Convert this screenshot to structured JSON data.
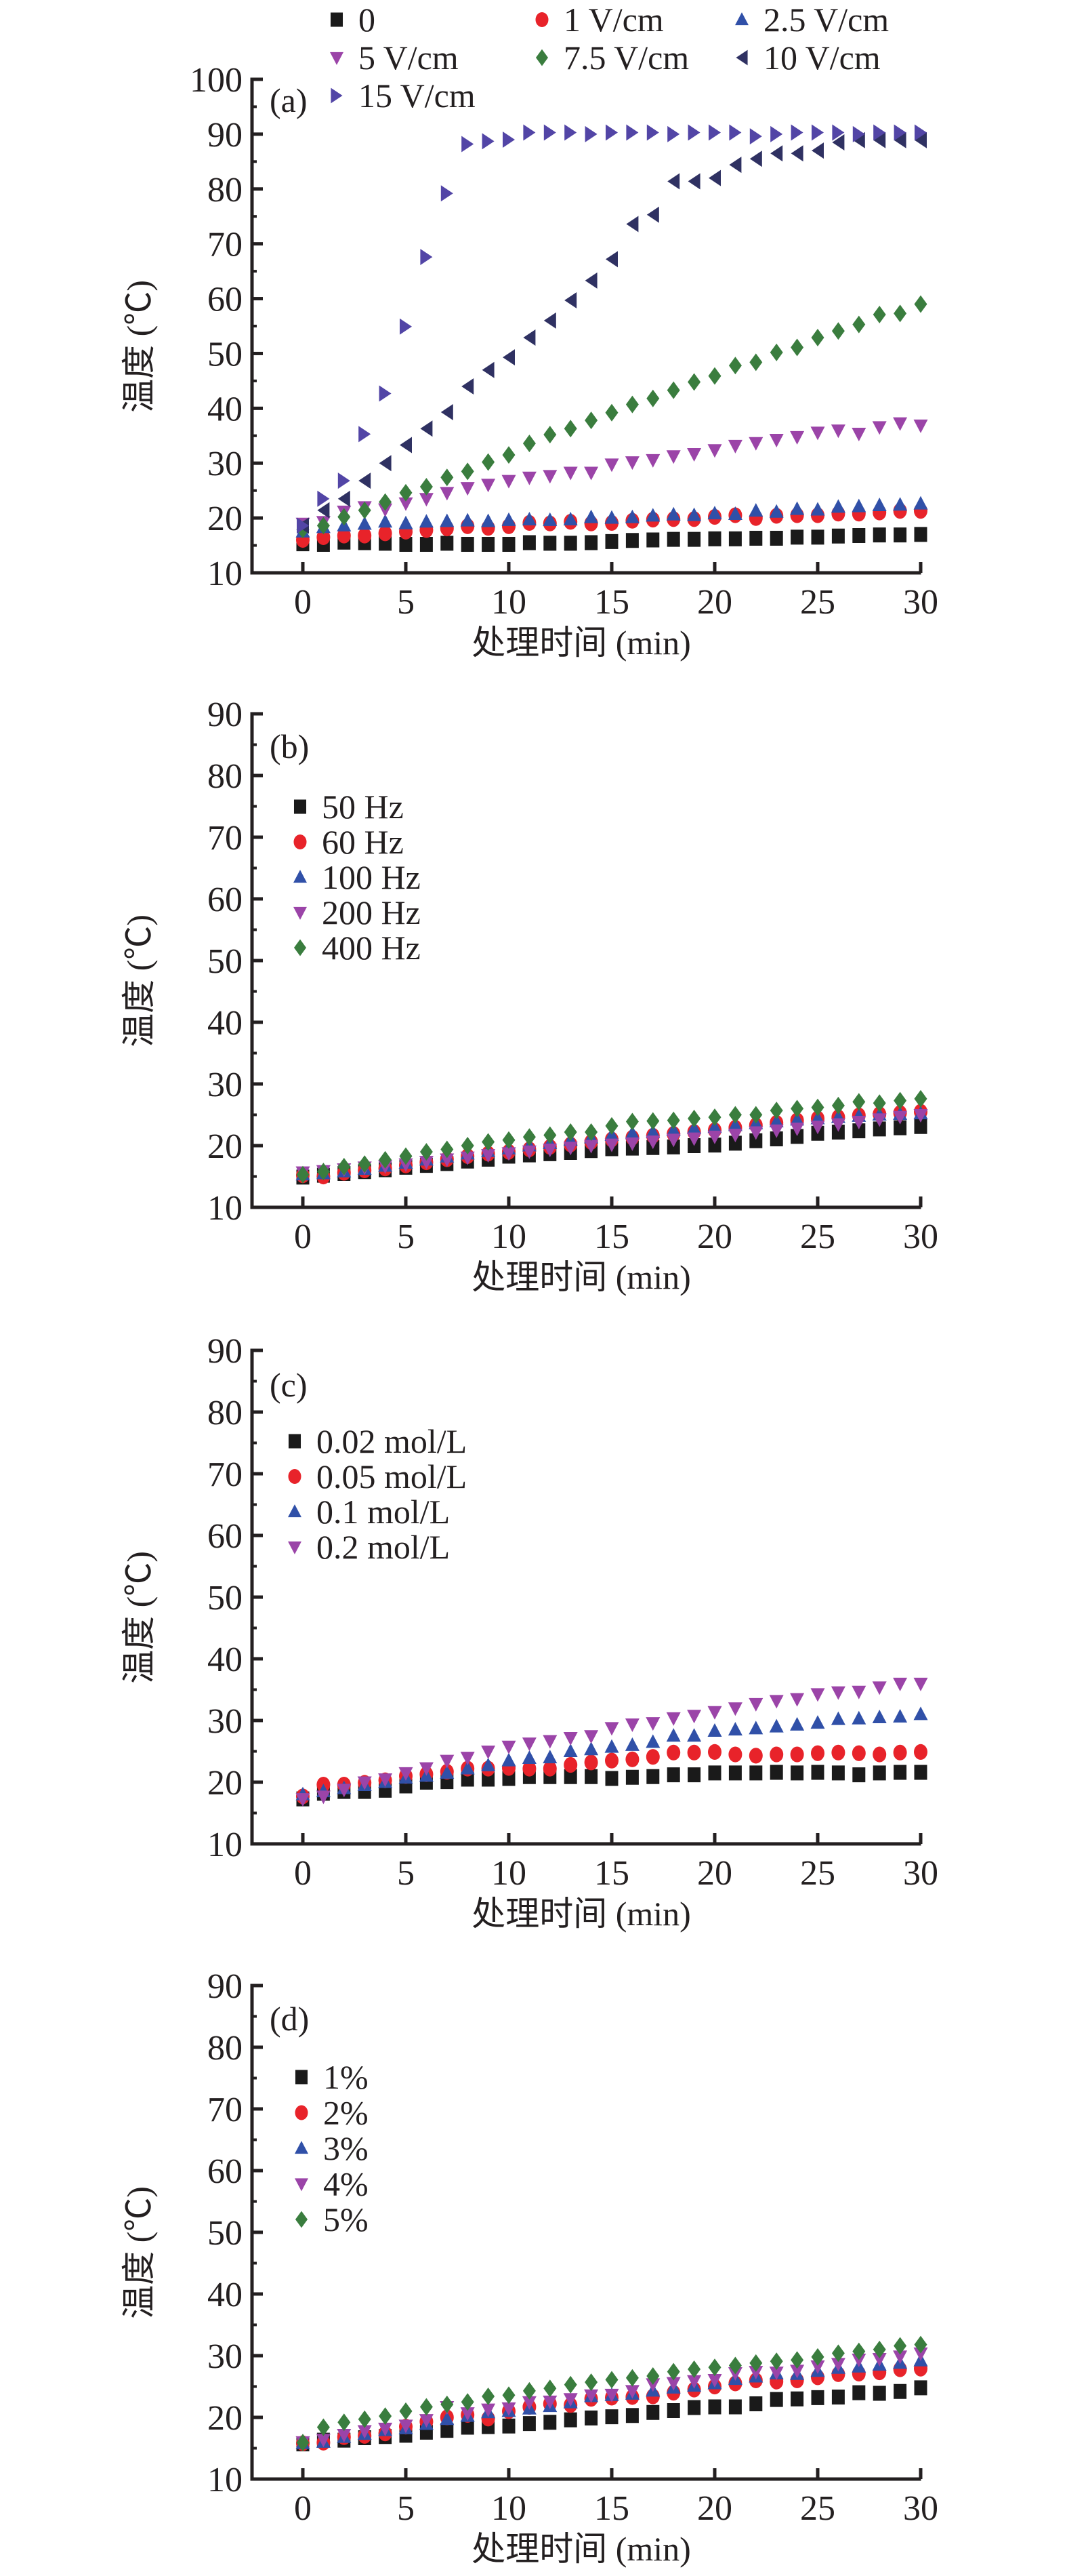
{
  "chart_data": [
    {
      "panel": "(a)",
      "type": "scatter",
      "title": "",
      "xlabel": "处理时间 (min)",
      "ylabel": "温度 (℃)",
      "xlim": [
        -2.5,
        30
      ],
      "ylim": [
        10,
        100
      ],
      "xticks": [
        0,
        5,
        10,
        15,
        20,
        25,
        30
      ],
      "yticks": [
        10,
        20,
        30,
        40,
        50,
        60,
        70,
        80,
        90,
        100
      ],
      "grid": false,
      "legend_placement": "top",
      "x": [
        0,
        1,
        2,
        3,
        4,
        5,
        6,
        7,
        8,
        9,
        10,
        11,
        12,
        13,
        14,
        15,
        16,
        17,
        18,
        19,
        20,
        21,
        22,
        23,
        24,
        25,
        26,
        27,
        28,
        29,
        30
      ],
      "series": [
        {
          "name": "0",
          "marker": "square",
          "color": "#1a1a1a",
          "values": [
            15.3,
            15.2,
            15.6,
            15.5,
            15.4,
            15.2,
            15.2,
            15.4,
            15.2,
            15.2,
            15.2,
            15.5,
            15.4,
            15.4,
            15.5,
            15.7,
            15.9,
            16.0,
            16.1,
            16.1,
            16.2,
            16.2,
            16.3,
            16.3,
            16.5,
            16.5,
            16.7,
            16.8,
            16.9,
            16.9,
            17.0
          ]
        },
        {
          "name": "1 V/cm",
          "marker": "circle",
          "color": "#e8232a",
          "values": [
            16.0,
            16.5,
            16.8,
            16.8,
            17.2,
            17.5,
            17.8,
            18.1,
            18.5,
            18.2,
            18.5,
            19.1,
            19.0,
            19.3,
            19.0,
            19.1,
            19.5,
            19.7,
            19.8,
            19.8,
            20.2,
            20.5,
            20.0,
            20.4,
            20.5,
            20.5,
            20.8,
            20.8,
            21.0,
            21.3,
            21.3
          ]
        },
        {
          "name": "2.5 V/cm",
          "marker": "triangle-up",
          "color": "#3050a8",
          "values": [
            17.5,
            18.3,
            18.6,
            18.9,
            19.3,
            19.0,
            19.3,
            19.4,
            19.5,
            19.4,
            19.6,
            19.7,
            19.6,
            19.7,
            20.1,
            20.0,
            20.1,
            20.4,
            20.6,
            20.5,
            20.8,
            20.7,
            21.3,
            21.1,
            21.6,
            21.5,
            22.0,
            22.1,
            22.3,
            22.4,
            22.6
          ]
        },
        {
          "name": "5 V/cm",
          "marker": "triangle-down",
          "color": "#9b44a8",
          "values": [
            19.0,
            19.3,
            21.2,
            22.0,
            21.6,
            22.7,
            23.5,
            24.6,
            25.5,
            26.1,
            26.8,
            27.4,
            27.7,
            28.3,
            28.3,
            29.8,
            30.2,
            30.6,
            31.3,
            31.7,
            32.4,
            33.2,
            33.7,
            34.3,
            34.8,
            35.6,
            36.0,
            35.4,
            36.6,
            37.3,
            36.9
          ]
        },
        {
          "name": "7.5 V/cm",
          "marker": "diamond",
          "color": "#3a7d3e",
          "values": [
            17.9,
            18.6,
            20.2,
            21.4,
            22.9,
            24.6,
            25.7,
            27.4,
            28.5,
            30.2,
            31.5,
            33.6,
            35.2,
            36.3,
            37.8,
            39.2,
            40.7,
            41.8,
            43.3,
            44.8,
            45.9,
            47.8,
            48.4,
            50.2,
            51.1,
            52.9,
            54.1,
            55.3,
            57.1,
            57.3,
            59.0
          ]
        },
        {
          "name": "10 V/cm",
          "marker": "triangle-left",
          "color": "#2f3162",
          "values": [
            18.6,
            21.4,
            23.5,
            26.8,
            30.0,
            33.3,
            36.3,
            39.3,
            44.0,
            47.0,
            49.3,
            52.9,
            56.0,
            59.7,
            63.3,
            67.2,
            73.6,
            75.3,
            81.4,
            81.4,
            82.0,
            84.4,
            85.5,
            86.5,
            86.5,
            87.0,
            88.5,
            88.9,
            88.9,
            88.9,
            88.9
          ]
        },
        {
          "name": "15 V/cm",
          "marker": "triangle-right",
          "color": "#5245a6",
          "values": [
            18.6,
            23.5,
            26.8,
            35.3,
            42.7,
            54.9,
            67.6,
            79.2,
            88.2,
            88.7,
            89.0,
            90.3,
            90.3,
            90.3,
            90.0,
            90.3,
            90.3,
            90.3,
            90.0,
            90.3,
            90.3,
            90.3,
            89.6,
            90.0,
            90.3,
            90.3,
            90.3,
            90.0,
            90.3,
            90.3,
            90.3
          ]
        }
      ]
    },
    {
      "panel": "(b)",
      "type": "scatter",
      "title": "",
      "xlabel": "处理时间 (min)",
      "ylabel": "温度 (℃)",
      "xlim": [
        -2.5,
        30
      ],
      "ylim": [
        10,
        90
      ],
      "xticks": [
        0,
        5,
        10,
        15,
        20,
        25,
        30
      ],
      "yticks": [
        10,
        20,
        30,
        40,
        50,
        60,
        70,
        80,
        90
      ],
      "grid": false,
      "legend_placement": "upper-left",
      "x": [
        0,
        1,
        2,
        3,
        4,
        5,
        6,
        7,
        8,
        9,
        10,
        11,
        12,
        13,
        14,
        15,
        16,
        17,
        18,
        19,
        20,
        21,
        22,
        23,
        24,
        25,
        26,
        27,
        28,
        29,
        30
      ],
      "series": [
        {
          "name": "50 Hz",
          "marker": "square",
          "color": "#1a1a1a",
          "values": [
            14.9,
            15.2,
            15.5,
            15.8,
            16.1,
            16.5,
            16.8,
            17.1,
            17.5,
            17.8,
            18.3,
            18.5,
            18.7,
            18.9,
            19.2,
            19.5,
            19.6,
            19.7,
            19.8,
            20.0,
            20.1,
            20.4,
            20.8,
            21.1,
            21.5,
            22.0,
            22.2,
            22.4,
            22.7,
            22.9,
            23.1
          ]
        },
        {
          "name": "60 Hz",
          "marker": "circle",
          "color": "#e8232a",
          "values": [
            15.2,
            15.0,
            15.6,
            16.0,
            16.3,
            16.8,
            17.3,
            17.8,
            18.3,
            18.7,
            19.0,
            19.4,
            19.8,
            20.2,
            20.6,
            21.0,
            21.3,
            21.6,
            21.9,
            22.2,
            22.5,
            22.9,
            23.3,
            23.7,
            24.1,
            24.4,
            24.6,
            24.9,
            25.1,
            25.3,
            25.5
          ]
        },
        {
          "name": "100 Hz",
          "marker": "triangle-up",
          "color": "#3050a8",
          "values": [
            15.3,
            15.5,
            15.8,
            16.2,
            16.7,
            17.2,
            17.7,
            18.2,
            18.7,
            19.1,
            19.5,
            20.0,
            20.4,
            20.9,
            21.3,
            21.7,
            22.0,
            22.2,
            22.5,
            22.8,
            23.0,
            23.3,
            23.6,
            23.9,
            24.2,
            24.4,
            24.6,
            24.8,
            25.0,
            25.1,
            25.2
          ]
        },
        {
          "name": "200 Hz",
          "marker": "triangle-down",
          "color": "#9b44a8",
          "values": [
            15.7,
            15.9,
            16.2,
            16.5,
            16.7,
            17.0,
            17.4,
            17.8,
            18.1,
            18.5,
            18.8,
            19.1,
            19.4,
            19.7,
            20.0,
            20.2,
            20.4,
            20.7,
            21.0,
            21.2,
            21.5,
            21.8,
            22.2,
            22.5,
            22.8,
            23.1,
            23.5,
            23.9,
            24.3,
            24.7,
            25.0
          ]
        },
        {
          "name": "400 Hz",
          "marker": "diamond",
          "color": "#3a7d3e",
          "values": [
            15.3,
            15.8,
            16.6,
            17.0,
            17.7,
            18.3,
            19.0,
            19.4,
            20.0,
            20.6,
            20.9,
            21.4,
            21.7,
            22.2,
            22.2,
            23.2,
            23.9,
            24.0,
            24.1,
            24.4,
            24.6,
            25.0,
            25.0,
            25.7,
            26.0,
            26.2,
            26.5,
            27.1,
            26.9,
            27.3,
            27.6
          ]
        }
      ]
    },
    {
      "panel": "(c)",
      "type": "scatter",
      "title": "",
      "xlabel": "处理时间 (min)",
      "ylabel": "温度 (℃)",
      "xlim": [
        -2.5,
        30
      ],
      "ylim": [
        10,
        90
      ],
      "xticks": [
        0,
        5,
        10,
        15,
        20,
        25,
        30
      ],
      "yticks": [
        10,
        20,
        30,
        40,
        50,
        60,
        70,
        80,
        90
      ],
      "grid": false,
      "legend_placement": "upper-left",
      "x": [
        0,
        1,
        2,
        3,
        4,
        5,
        6,
        7,
        8,
        9,
        10,
        11,
        12,
        13,
        14,
        15,
        16,
        17,
        18,
        19,
        20,
        21,
        22,
        23,
        24,
        25,
        26,
        27,
        28,
        29,
        30
      ],
      "series": [
        {
          "name": "0.02 mol/L",
          "marker": "square",
          "color": "#1a1a1a",
          "values": [
            17.3,
            18.2,
            18.5,
            18.5,
            18.7,
            19.4,
            20.0,
            20.1,
            20.5,
            20.5,
            20.6,
            20.9,
            20.9,
            20.9,
            20.9,
            20.6,
            20.8,
            20.9,
            21.2,
            21.2,
            21.5,
            21.5,
            21.5,
            21.6,
            21.5,
            21.6,
            21.5,
            21.2,
            21.5,
            21.6,
            21.6
          ]
        },
        {
          "name": "0.05 mol/L",
          "marker": "circle",
          "color": "#e8232a",
          "values": [
            17.7,
            19.6,
            19.6,
            19.9,
            20.3,
            21.0,
            21.3,
            21.7,
            22.2,
            22.2,
            22.3,
            22.2,
            22.2,
            22.8,
            23.2,
            23.5,
            23.7,
            24.1,
            24.8,
            24.8,
            24.9,
            24.5,
            24.3,
            24.5,
            24.5,
            24.7,
            24.8,
            24.7,
            24.5,
            24.8,
            24.9
          ]
        },
        {
          "name": "0.1 mol/L",
          "marker": "triangle-up",
          "color": "#3050a8",
          "values": [
            18.0,
            18.5,
            19.0,
            19.5,
            20.0,
            20.7,
            21.0,
            21.5,
            22.2,
            22.7,
            23.5,
            23.9,
            24.0,
            25.0,
            25.3,
            25.7,
            26.0,
            26.5,
            27.5,
            27.5,
            28.3,
            28.5,
            28.7,
            29.0,
            29.3,
            29.6,
            30.2,
            30.3,
            30.5,
            30.6,
            31.0
          ]
        },
        {
          "name": "0.2 mol/L",
          "marker": "triangle-down",
          "color": "#9b44a8",
          "values": [
            17.3,
            17.7,
            18.8,
            20.0,
            20.5,
            21.5,
            22.3,
            23.5,
            24.0,
            25.0,
            25.8,
            26.3,
            26.7,
            27.2,
            27.5,
            28.8,
            29.4,
            29.6,
            30.4,
            30.8,
            31.4,
            32.0,
            32.7,
            33.2,
            33.5,
            34.3,
            34.6,
            34.7,
            35.4,
            36.0,
            36.0
          ]
        }
      ]
    },
    {
      "panel": "(d)",
      "type": "scatter",
      "title": "",
      "xlabel": "处理时间 (min)",
      "ylabel": "温度 (℃)",
      "xlim": [
        -2.5,
        30
      ],
      "ylim": [
        10,
        90
      ],
      "xticks": [
        0,
        5,
        10,
        15,
        20,
        25,
        30
      ],
      "yticks": [
        10,
        20,
        30,
        40,
        50,
        60,
        70,
        80,
        90
      ],
      "grid": false,
      "legend_placement": "upper-left",
      "x": [
        0,
        1,
        2,
        3,
        4,
        5,
        6,
        7,
        8,
        9,
        10,
        11,
        12,
        13,
        14,
        15,
        16,
        17,
        18,
        19,
        20,
        21,
        22,
        23,
        24,
        25,
        26,
        27,
        28,
        29,
        30
      ],
      "series": [
        {
          "name": "1%",
          "marker": "square",
          "color": "#1a1a1a",
          "values": [
            15.7,
            16.3,
            16.3,
            16.7,
            16.9,
            17.1,
            17.6,
            17.9,
            18.4,
            18.5,
            18.6,
            19.0,
            19.2,
            19.6,
            19.9,
            20.1,
            20.3,
            20.8,
            21.1,
            21.6,
            21.7,
            21.7,
            22.2,
            22.9,
            23.0,
            23.2,
            23.3,
            24.0,
            23.9,
            24.2,
            24.8
          ]
        },
        {
          "name": "2%",
          "marker": "circle",
          "color": "#e8232a",
          "values": [
            15.8,
            15.9,
            16.8,
            17.0,
            17.4,
            18.5,
            19.3,
            20.0,
            20.4,
            19.8,
            21.0,
            21.7,
            22.2,
            22.0,
            23.0,
            23.2,
            23.3,
            23.4,
            24.0,
            24.5,
            25.0,
            25.5,
            26.0,
            25.8,
            26.0,
            26.5,
            27.0,
            27.1,
            27.3,
            27.8,
            27.9
          ]
        },
        {
          "name": "3%",
          "marker": "triangle-up",
          "color": "#3050a8",
          "values": [
            15.8,
            16.0,
            16.8,
            17.3,
            17.9,
            18.2,
            18.9,
            19.7,
            20.2,
            20.8,
            21.0,
            21.4,
            21.8,
            22.4,
            23.4,
            23.6,
            23.8,
            24.3,
            24.8,
            25.1,
            25.5,
            26.2,
            26.6,
            27.1,
            27.0,
            27.5,
            28.0,
            28.2,
            28.5,
            28.8,
            29.2
          ]
        },
        {
          "name": "4%",
          "marker": "triangle-down",
          "color": "#9b44a8",
          "values": [
            16.0,
            16.4,
            17.2,
            17.8,
            18.2,
            18.7,
            19.6,
            21.7,
            20.7,
            21.3,
            21.5,
            22.5,
            22.6,
            23.0,
            23.6,
            23.7,
            24.3,
            25.4,
            25.6,
            25.9,
            26.1,
            27.2,
            27.4,
            27.3,
            27.6,
            28.3,
            28.7,
            29.4,
            29.5,
            29.9,
            30.4
          ]
        },
        {
          "name": "5%",
          "marker": "diamond",
          "color": "#3a7d3e",
          "values": [
            15.9,
            18.4,
            19.2,
            19.7,
            20.2,
            21.0,
            21.7,
            22.1,
            22.5,
            23.4,
            23.6,
            24.3,
            24.7,
            25.3,
            25.7,
            26.1,
            26.4,
            26.7,
            27.4,
            27.8,
            28.1,
            28.4,
            28.8,
            29.1,
            29.3,
            29.8,
            30.4,
            30.7,
            31.0,
            31.6,
            31.8
          ]
        }
      ]
    }
  ]
}
